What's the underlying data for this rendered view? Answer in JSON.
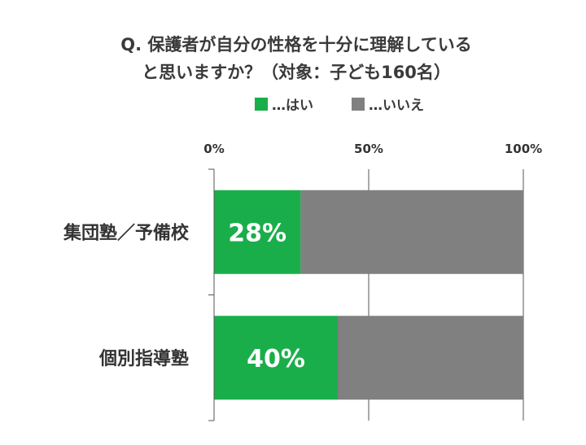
{
  "chart_data": {
    "type": "bar",
    "orientation": "horizontal",
    "stacked": true,
    "title_lines": [
      "Q. 保護者が自分の性格を十分に理解している",
      "と思いますか？（対象：子ども160名）"
    ],
    "categories": [
      "集団塾／予備校",
      "個別指導塾"
    ],
    "series": [
      {
        "name": "…はい",
        "values": [
          28,
          40
        ],
        "color": "#1aae4b",
        "data_labels": [
          "28%",
          "40%"
        ]
      },
      {
        "name": "…いいえ",
        "values": [
          72,
          60
        ],
        "color": "#808080"
      }
    ],
    "xlim": [
      0,
      100
    ],
    "xticks": [
      0,
      50,
      100
    ],
    "xtick_labels": [
      "0%",
      "50%",
      "100%"
    ],
    "x_axis_position": "top",
    "grid": true,
    "legend_position": "top"
  }
}
